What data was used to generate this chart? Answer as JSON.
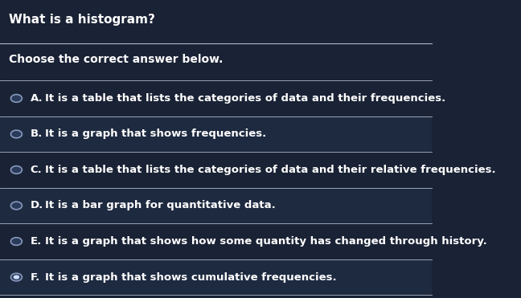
{
  "title": "What is a histogram?",
  "subtitle": "Choose the correct answer below.",
  "bg_color": "#1a2235",
  "option_bg_dark": "#1a2235",
  "option_bg_light": "#1e2a40",
  "text_color": "#ffffff",
  "separator_color": "#b0b8c8",
  "circle_color": "#2a3a5a",
  "circle_border": "#8899bb",
  "options": [
    {
      "letter": "A",
      "text": "It is a table that lists the categories of data and their frequencies.",
      "selected": false
    },
    {
      "letter": "B",
      "text": "It is a graph that shows frequencies.",
      "selected": false
    },
    {
      "letter": "C",
      "text": "It is a table that lists the categories of data and their relative frequencies.",
      "selected": false
    },
    {
      "letter": "D",
      "text": "It is a bar graph for quantitative data.",
      "selected": false
    },
    {
      "letter": "E",
      "text": "It is a graph that shows how some quantity has changed through history.",
      "selected": false
    },
    {
      "letter": "F",
      "text": "It is a graph that shows cumulative frequencies.",
      "selected": true
    }
  ],
  "title_fontsize": 11,
  "subtitle_fontsize": 10,
  "option_fontsize": 9.5,
  "figsize": [
    6.48,
    3.71
  ],
  "dpi": 100
}
